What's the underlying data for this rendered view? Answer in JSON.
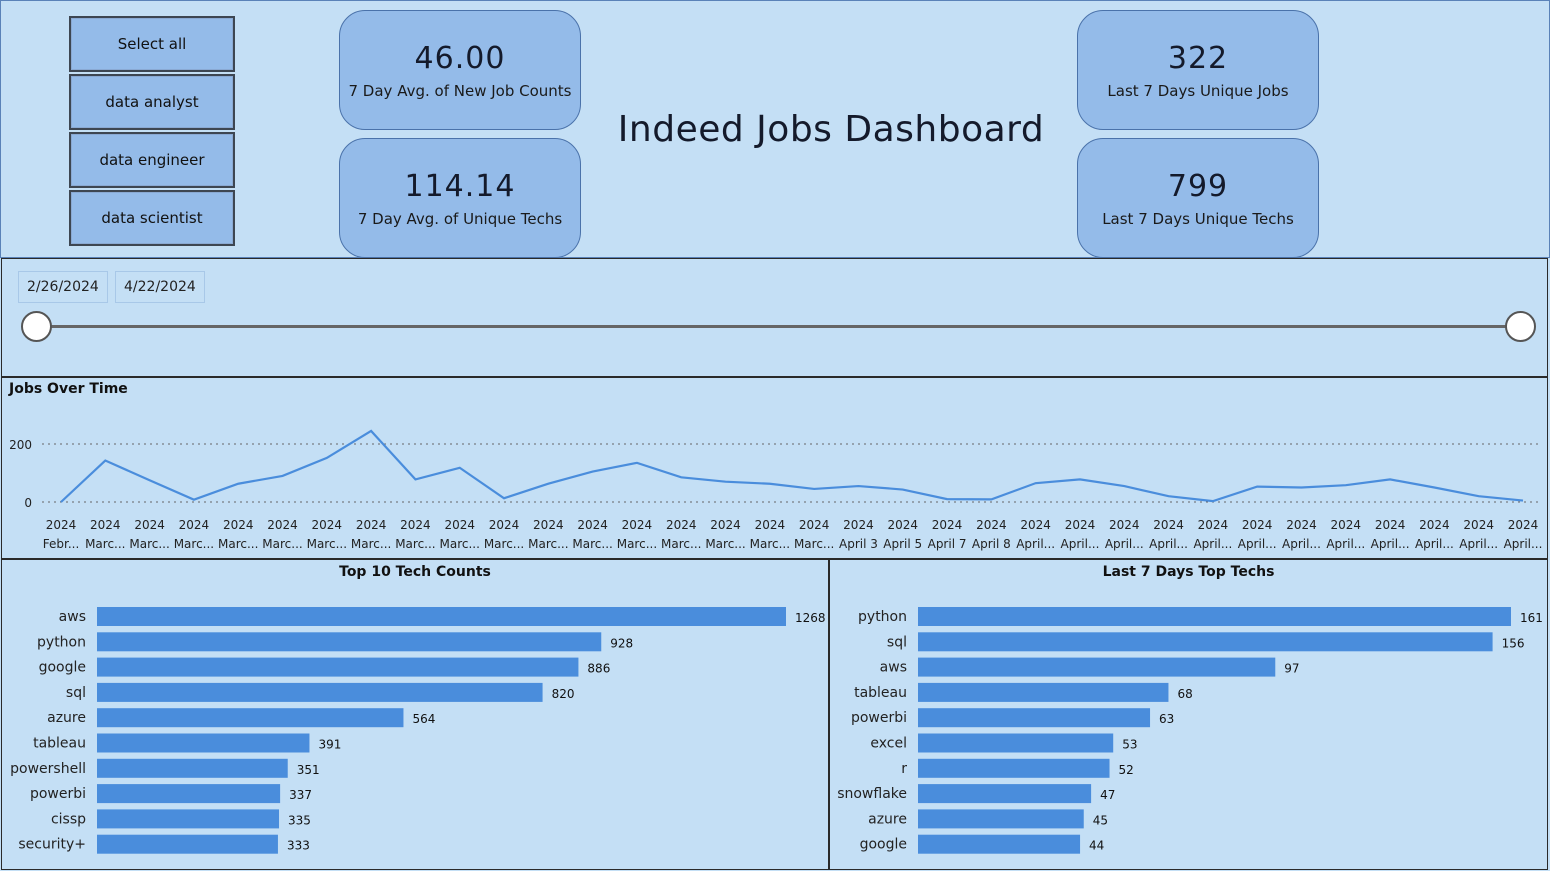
{
  "slicer": {
    "items": [
      "Select all",
      "data analyst",
      "data engineer",
      "data scientist"
    ]
  },
  "dashboard_title": "Indeed Jobs Dashboard",
  "cards": {
    "avg_new_jobs": {
      "value": "46.00",
      "label": "7 Day Avg. of New Job Counts"
    },
    "avg_unique_techs": {
      "value": "114.14",
      "label": "7 Day Avg. of Unique Techs"
    },
    "unique_jobs": {
      "value": "322",
      "label": "Last 7 Days Unique Jobs"
    },
    "unique_techs": {
      "value": "799",
      "label": "Last 7 Days Unique Techs"
    }
  },
  "date_range": {
    "start": "2/26/2024",
    "end": "4/22/2024"
  },
  "colors": {
    "accent": "#4a8ddc",
    "card_bg": "#94bbe9",
    "page_bg": "#c4dff5"
  },
  "chart_data": [
    {
      "type": "line",
      "title": "Jobs Over Time",
      "y_ticks": [
        0,
        200
      ],
      "grid": true,
      "x_labels": [
        [
          "2024",
          "Febr..."
        ],
        [
          "2024",
          "Marc..."
        ],
        [
          "2024",
          "Marc..."
        ],
        [
          "2024",
          "Marc..."
        ],
        [
          "2024",
          "Marc..."
        ],
        [
          "2024",
          "Marc..."
        ],
        [
          "2024",
          "Marc..."
        ],
        [
          "2024",
          "Marc..."
        ],
        [
          "2024",
          "Marc..."
        ],
        [
          "2024",
          "Marc..."
        ],
        [
          "2024",
          "Marc..."
        ],
        [
          "2024",
          "Marc..."
        ],
        [
          "2024",
          "Marc..."
        ],
        [
          "2024",
          "Marc..."
        ],
        [
          "2024",
          "Marc..."
        ],
        [
          "2024",
          "Marc..."
        ],
        [
          "2024",
          "Marc..."
        ],
        [
          "2024",
          "Marc..."
        ],
        [
          "2024",
          "April 3"
        ],
        [
          "2024",
          "April 5"
        ],
        [
          "2024",
          "April 7"
        ],
        [
          "2024",
          "April 8"
        ],
        [
          "2024",
          "April..."
        ],
        [
          "2024",
          "April..."
        ],
        [
          "2024",
          "April..."
        ],
        [
          "2024",
          "April..."
        ],
        [
          "2024",
          "April..."
        ],
        [
          "2024",
          "April..."
        ],
        [
          "2024",
          "April..."
        ],
        [
          "2024",
          "April..."
        ],
        [
          "2024",
          "April..."
        ],
        [
          "2024",
          "April..."
        ],
        [
          "2024",
          "April..."
        ],
        [
          "2024",
          "April..."
        ]
      ],
      "values": [
        0,
        143,
        75,
        8,
        63,
        90,
        152,
        245,
        78,
        118,
        13,
        63,
        105,
        135,
        85,
        70,
        63,
        45,
        55,
        43,
        10,
        9,
        65,
        78,
        55,
        20,
        3,
        53,
        50,
        58,
        78,
        50,
        20,
        5
      ]
    },
    {
      "type": "bar",
      "title": "Top 10 Tech Counts",
      "categories": [
        "aws",
        "python",
        "google",
        "sql",
        "azure",
        "tableau",
        "powershell",
        "powerbi",
        "cissp",
        "security+"
      ],
      "values": [
        1268,
        928,
        886,
        820,
        564,
        391,
        351,
        337,
        335,
        333
      ]
    },
    {
      "type": "bar",
      "title": "Last 7 Days Top Techs",
      "categories": [
        "python",
        "sql",
        "aws",
        "tableau",
        "powerbi",
        "excel",
        "r",
        "snowflake",
        "azure",
        "google"
      ],
      "values": [
        161,
        156,
        97,
        68,
        63,
        53,
        52,
        47,
        45,
        44
      ]
    }
  ]
}
